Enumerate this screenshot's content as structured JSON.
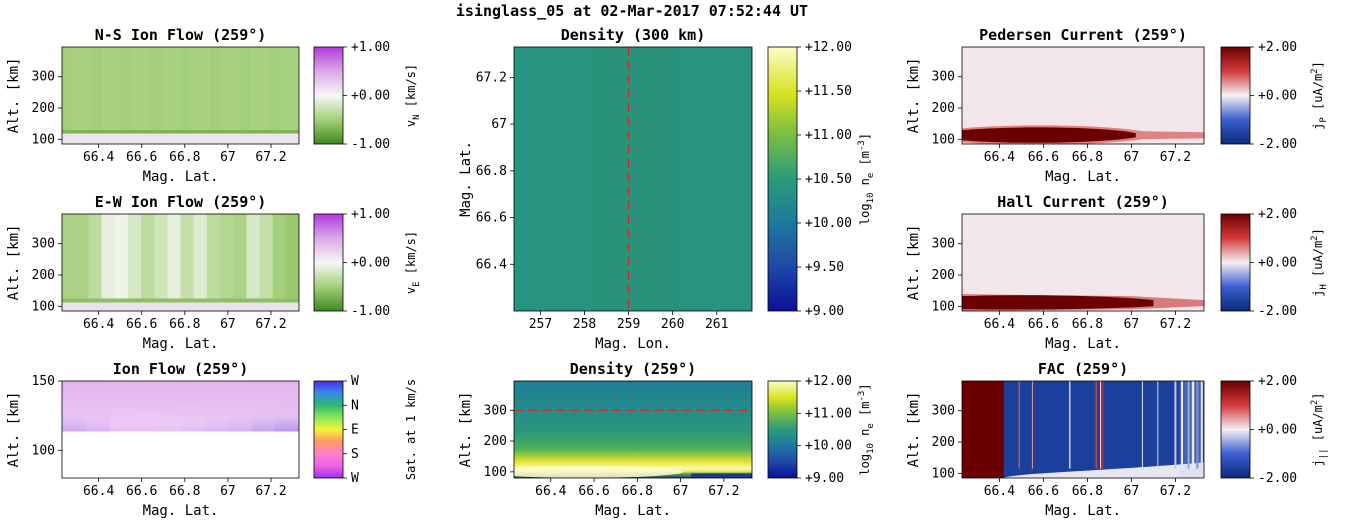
{
  "figure": {
    "title": "isinglass_05 at 02-Mar-2017 07:52:44 UT"
  },
  "colors": {
    "green": "#4d9221",
    "purple": "#c51bde",
    "red": "#67001f",
    "blue": "#053061",
    "guide": "#d62728"
  },
  "chart_data": [
    {
      "id": "ns_ion_flow",
      "type": "heatmap",
      "title": "N-S Ion Flow (259°)",
      "xlabel": "Mag. Lat.",
      "ylabel": "Alt. [km]",
      "xlim": [
        66.23,
        67.33
      ],
      "ylim": [
        85,
        395
      ],
      "xticks": [
        "66.4",
        "66.6",
        "66.8",
        "67",
        "67.2"
      ],
      "yticks": [
        "100",
        "200",
        "300"
      ],
      "colorbar": {
        "label": "v",
        "sub": "N",
        "unit": " [km/s]",
        "ticks": [
          "+1.00",
          "+0.00",
          "-1.00"
        ],
        "range": [
          -1,
          1
        ],
        "cmap": "PiYG_r"
      },
      "summary": {
        "above_130km_value": -0.45,
        "below_130km_value": 0.0
      }
    },
    {
      "id": "ew_ion_flow",
      "type": "heatmap",
      "title": "E-W Ion Flow (259°)",
      "xlabel": "Mag. Lat.",
      "ylabel": "Alt. [km]",
      "xlim": [
        66.23,
        67.33
      ],
      "ylim": [
        85,
        395
      ],
      "xticks": [
        "66.4",
        "66.6",
        "66.8",
        "67",
        "67.2"
      ],
      "yticks": [
        "100",
        "200",
        "300"
      ],
      "colorbar": {
        "label": "v",
        "sub": "E",
        "unit": " [km/s]",
        "ticks": [
          "+1.00",
          "+0.00",
          "-1.00"
        ],
        "range": [
          -1,
          1
        ],
        "cmap": "PiYG_r"
      },
      "column_values": [
        -0.45,
        -0.45,
        -0.35,
        -0.1,
        -0.05,
        -0.2,
        -0.35,
        -0.25,
        -0.1,
        -0.3,
        -0.15,
        -0.35,
        -0.4,
        -0.45,
        -0.2,
        -0.3,
        -0.5,
        -0.55
      ]
    },
    {
      "id": "ion_flow_direction",
      "type": "heatmap",
      "title": "Ion Flow (259°)",
      "xlabel": "Mag. Lat.",
      "ylabel": "Alt. [km]",
      "xlim": [
        66.23,
        67.33
      ],
      "ylim": [
        80,
        150
      ],
      "xticks": [
        "66.4",
        "66.6",
        "66.8",
        "67",
        "67.2"
      ],
      "yticks": [
        "100",
        "150"
      ],
      "colorbar": {
        "label": "Sat. at 1 km/s",
        "ticks": [
          "W",
          "N",
          "E",
          "S",
          "W"
        ],
        "cmap": "hsv"
      }
    },
    {
      "id": "density_300km",
      "type": "heatmap",
      "title": "Density (300 km)",
      "xlabel": "Mag. Lon.",
      "ylabel": "Mag. Lat.",
      "xlim": [
        256.4,
        261.8
      ],
      "ylim": [
        66.2,
        67.33
      ],
      "xticks": [
        "257",
        "258",
        "259",
        "260",
        "261"
      ],
      "yticks": [
        "66.4",
        "66.6",
        "66.8",
        "67",
        "67.2"
      ],
      "guide_line": {
        "axis": "x",
        "value": 259
      },
      "colorbar": {
        "label": "log",
        "sub": "10",
        "mid": " n",
        "sub2": "e",
        "unit": " [m",
        "sup": "-3",
        "end": "]",
        "ticks": [
          "+12.00",
          "+11.50",
          "+11.00",
          "+10.50",
          "+10.00",
          "+9.50",
          "+9.00"
        ],
        "range": [
          9,
          12
        ],
        "cmap": "viridis_like"
      },
      "summary": {
        "value": 10.4
      }
    },
    {
      "id": "density_259",
      "type": "heatmap",
      "title": "Density (259°)",
      "xlabel": "Mag. Lat.",
      "ylabel": "Alt. [km]",
      "xlim": [
        66.23,
        67.33
      ],
      "ylim": [
        80,
        395
      ],
      "xticks": [
        "66.4",
        "66.6",
        "66.8",
        "67",
        "67.2"
      ],
      "yticks": [
        "100",
        "200",
        "300"
      ],
      "guide_line": {
        "axis": "y",
        "value": 300
      },
      "colorbar": {
        "label": "log",
        "sub": "10",
        "mid": " n",
        "sub2": "e",
        "unit": " [m",
        "sup": "-3",
        "end": "]",
        "ticks": [
          "+12.00",
          "+11.00",
          "+10.00",
          "+9.00"
        ],
        "range": [
          9,
          12
        ],
        "cmap": "viridis_like"
      }
    },
    {
      "id": "pedersen_current",
      "type": "heatmap",
      "title": "Pedersen Current (259°)",
      "xlabel": "Mag. Lat.",
      "ylabel": "Alt. [km]",
      "xlim": [
        66.23,
        67.33
      ],
      "ylim": [
        85,
        395
      ],
      "xticks": [
        "66.4",
        "66.6",
        "66.8",
        "67",
        "67.2"
      ],
      "yticks": [
        "100",
        "200",
        "300"
      ],
      "colorbar": {
        "label": "j",
        "sub": "P",
        "unit": " [uA/m",
        "sup": "2",
        "end": "]",
        "ticks": [
          "+2.00",
          "+0.00",
          "-2.00"
        ],
        "range": [
          -2,
          2
        ],
        "cmap": "seismic"
      }
    },
    {
      "id": "hall_current",
      "type": "heatmap",
      "title": "Hall Current (259°)",
      "xlabel": "Mag. Lat.",
      "ylabel": "Alt. [km]",
      "xlim": [
        66.23,
        67.33
      ],
      "ylim": [
        85,
        395
      ],
      "xticks": [
        "66.4",
        "66.6",
        "66.8",
        "67",
        "67.2"
      ],
      "yticks": [
        "100",
        "200",
        "300"
      ],
      "colorbar": {
        "label": "j",
        "sub": "H",
        "unit": " [uA/m",
        "sup": "2",
        "end": "]",
        "ticks": [
          "+2.00",
          "+0.00",
          "-2.00"
        ],
        "range": [
          -2,
          2
        ],
        "cmap": "seismic"
      }
    },
    {
      "id": "fac",
      "type": "heatmap",
      "title": "FAC (259°)",
      "xlabel": "Mag. Lat.",
      "ylabel": "Alt. [km]",
      "xlim": [
        66.23,
        67.33
      ],
      "ylim": [
        85,
        395
      ],
      "xticks": [
        "66.4",
        "66.6",
        "66.8",
        "67",
        "67.2"
      ],
      "yticks": [
        "100",
        "200",
        "300"
      ],
      "colorbar": {
        "label": "j",
        "sub": "||",
        "unit": " [uA/m",
        "sup": "2",
        "end": "]",
        "ticks": [
          "+2.00",
          "+0.00",
          "-2.00"
        ],
        "range": [
          -2,
          2
        ],
        "cmap": "seismic"
      },
      "summary": {
        "left_region_value": 2.0,
        "main_region_value": -2.0,
        "boundary_lat": 66.42
      }
    }
  ]
}
